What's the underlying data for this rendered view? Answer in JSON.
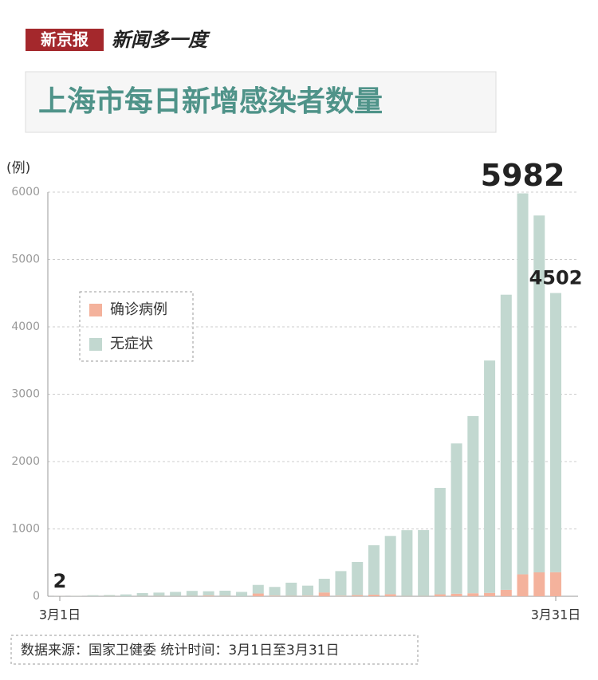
{
  "chart_data": {
    "type": "stacked-bar",
    "brand": "新京报",
    "brand_slogan": "新闻多一度",
    "title": "上海市每日新增感染者数量",
    "ylabel": "(例)",
    "source": "数据来源：国家卫健委 统计时间：3月1日至3月31日",
    "categories": [
      "3月1日",
      null,
      null,
      null,
      null,
      null,
      null,
      null,
      null,
      null,
      null,
      null,
      null,
      null,
      null,
      null,
      null,
      null,
      null,
      null,
      null,
      null,
      null,
      null,
      null,
      null,
      null,
      null,
      null,
      null,
      "3月31日"
    ],
    "series": [
      {
        "name": "确诊病例",
        "color": "#f4b29c",
        "values": [
          1,
          3,
          2,
          3,
          0,
          3,
          4,
          3,
          4,
          11,
          5,
          1,
          41,
          9,
          5,
          8,
          57,
          8,
          17,
          24,
          31,
          4,
          4,
          29,
          38,
          45,
          50,
          96,
          326,
          355,
          358
        ]
      },
      {
        "name": "无症状",
        "color": "#c2d8d0",
        "values": [
          1,
          5,
          14,
          16,
          28,
          45,
          51,
          62,
          76,
          64,
          78,
          64,
          128,
          130,
          197,
          150,
          203,
          366,
          492,
          734,
          865,
          977,
          979,
          1580,
          2231,
          2631,
          3450,
          4381,
          5656,
          5298,
          4144
        ]
      }
    ],
    "total_labels": [
      {
        "index": 0,
        "value": 2
      },
      {
        "index": 28,
        "value": 5982
      },
      {
        "index": 30,
        "value": 4502
      }
    ],
    "ylim": [
      0,
      6000
    ],
    "yticks": [
      0,
      1000,
      2000,
      3000,
      4000,
      5000,
      6000
    ],
    "grid": true
  }
}
